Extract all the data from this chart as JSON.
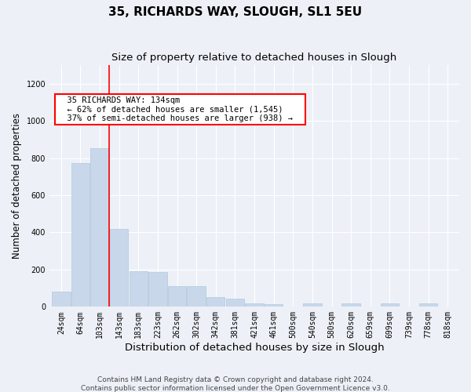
{
  "title": "35, RICHARDS WAY, SLOUGH, SL1 5EU",
  "subtitle": "Size of property relative to detached houses in Slough",
  "xlabel": "Distribution of detached houses by size in Slough",
  "ylabel": "Number of detached properties",
  "categories": [
    "24sqm",
    "64sqm",
    "103sqm",
    "143sqm",
    "183sqm",
    "223sqm",
    "262sqm",
    "302sqm",
    "342sqm",
    "381sqm",
    "421sqm",
    "461sqm",
    "500sqm",
    "540sqm",
    "580sqm",
    "620sqm",
    "659sqm",
    "699sqm",
    "739sqm",
    "778sqm",
    "818sqm"
  ],
  "values": [
    80,
    775,
    855,
    420,
    190,
    185,
    110,
    110,
    50,
    45,
    20,
    15,
    0,
    20,
    0,
    20,
    0,
    20,
    0,
    20,
    0
  ],
  "bar_color": "#c8d8ea",
  "bar_edge_color": "#b0c8dc",
  "red_line_x": 2.5,
  "annotation_text": "  35 RICHARDS WAY: 134sqm  \n  ← 62% of detached houses are smaller (1,545)  \n  37% of semi-detached houses are larger (938) →  ",
  "annotation_box_color": "white",
  "annotation_box_edge_color": "red",
  "ylim": [
    0,
    1300
  ],
  "yticks": [
    0,
    200,
    400,
    600,
    800,
    1000,
    1200
  ],
  "footnote": "Contains HM Land Registry data © Crown copyright and database right 2024.\nContains public sector information licensed under the Open Government Licence v3.0.",
  "bg_color": "#edf1f7",
  "plot_bg_color": "#edf1f7",
  "grid_color": "white",
  "title_fontsize": 11,
  "subtitle_fontsize": 9.5,
  "axis_label_fontsize": 8.5,
  "tick_fontsize": 7,
  "annotation_fontsize": 7.5,
  "footnote_fontsize": 6.5
}
